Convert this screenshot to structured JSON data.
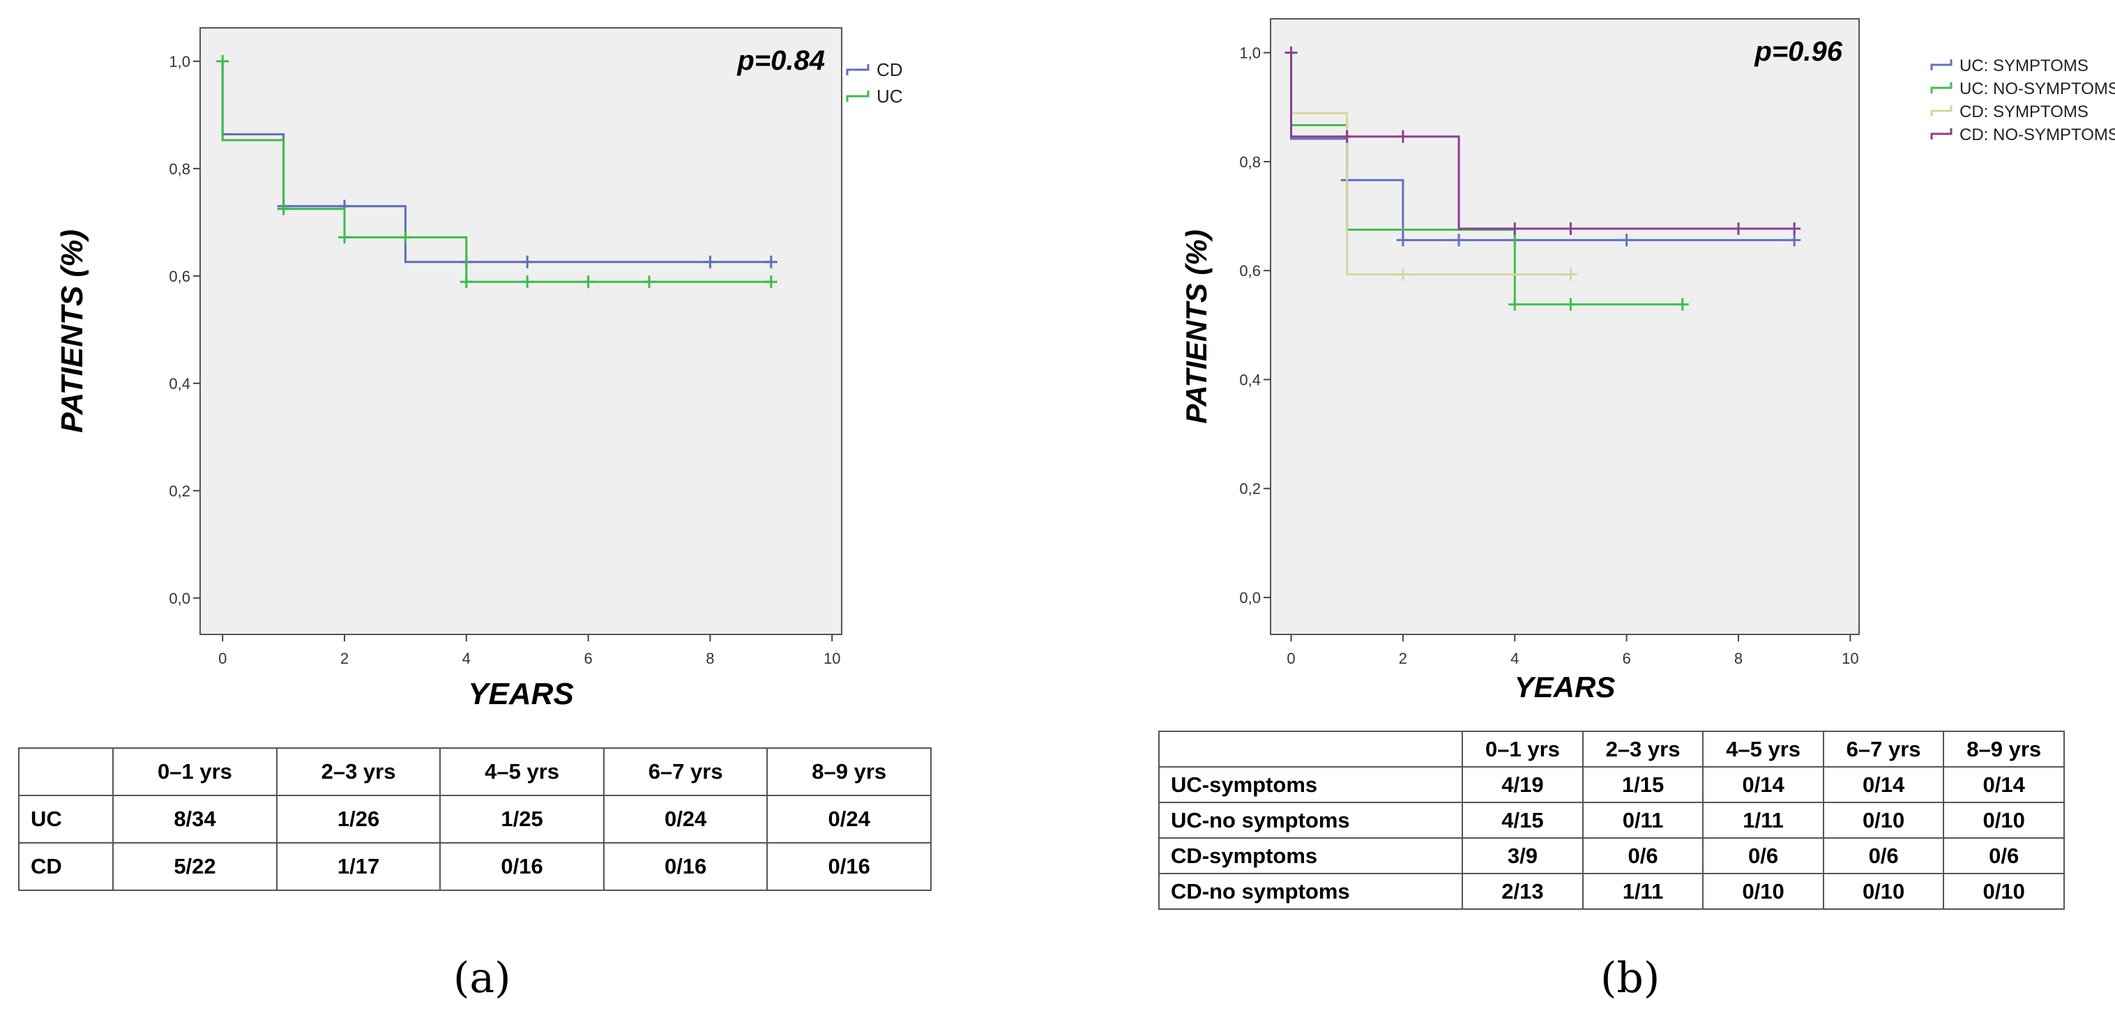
{
  "chart_data": [
    {
      "type": "line",
      "panel_label": "(a)",
      "ylabel": "PATIENTS (%)",
      "xlabel": "YEARS",
      "annotation": "p=0.84",
      "xlim": [
        0,
        10
      ],
      "ylim": [
        0,
        1
      ],
      "x_ticks": [
        0,
        2,
        4,
        6,
        8,
        10
      ],
      "y_ticks": [
        0,
        0.2,
        0.4,
        0.6,
        0.8,
        1.0
      ],
      "y_tick_labels": [
        "0,0",
        "0,2",
        "0,4",
        "0,6",
        "0,8",
        "1,0"
      ],
      "legend_position": "right",
      "series": [
        {
          "name": "CD",
          "color": "#5b6fb8",
          "steps": [
            [
              0,
              1.0
            ],
            [
              0,
              0.864
            ],
            [
              1,
              0.864
            ],
            [
              1,
              0.73
            ],
            [
              3,
              0.73
            ],
            [
              3,
              0.626
            ],
            [
              9,
              0.626
            ]
          ],
          "censors": [
            [
              1,
              0.73
            ],
            [
              2,
              0.73
            ],
            [
              4,
              0.626
            ],
            [
              5,
              0.626
            ],
            [
              8,
              0.626
            ],
            [
              9,
              0.626
            ]
          ]
        },
        {
          "name": "UC",
          "color": "#3dbb4c",
          "steps": [
            [
              0,
              1.0
            ],
            [
              0,
              0.853
            ],
            [
              1,
              0.853
            ],
            [
              1,
              0.725
            ],
            [
              2,
              0.725
            ],
            [
              2,
              0.672
            ],
            [
              4,
              0.672
            ],
            [
              4,
              0.589
            ],
            [
              9,
              0.589
            ]
          ],
          "censors": [
            [
              0,
              1.0
            ],
            [
              1,
              0.725
            ],
            [
              2,
              0.672
            ],
            [
              3,
              0.672
            ],
            [
              4,
              0.589
            ],
            [
              5,
              0.589
            ],
            [
              6,
              0.589
            ],
            [
              7,
              0.589
            ],
            [
              9,
              0.589
            ]
          ]
        }
      ]
    },
    {
      "type": "line",
      "panel_label": "(b)",
      "ylabel": "PATIENTS (%)",
      "xlabel": "YEARS",
      "annotation": "p=0.96",
      "xlim": [
        0,
        10
      ],
      "ylim": [
        0,
        1
      ],
      "x_ticks": [
        0,
        2,
        4,
        6,
        8,
        10
      ],
      "y_ticks": [
        0,
        0.2,
        0.4,
        0.6,
        0.8,
        1.0
      ],
      "y_tick_labels": [
        "0,0",
        "0,2",
        "0,4",
        "0,6",
        "0,8",
        "1,0"
      ],
      "legend_position": "top-right",
      "series": [
        {
          "name": "UC: SYMPTOMS",
          "color": "#6272c0",
          "steps": [
            [
              0,
              1.0
            ],
            [
              0,
              0.842
            ],
            [
              1,
              0.842
            ],
            [
              1,
              0.766
            ],
            [
              2,
              0.766
            ],
            [
              2,
              0.656
            ],
            [
              9,
              0.656
            ]
          ],
          "censors": [
            [
              1,
              0.766
            ],
            [
              2,
              0.656
            ],
            [
              3,
              0.656
            ],
            [
              4,
              0.656
            ],
            [
              6,
              0.656
            ],
            [
              9,
              0.656
            ]
          ]
        },
        {
          "name": "UC: NO-SYMPTOMS",
          "color": "#3fc04e",
          "steps": [
            [
              0,
              1.0
            ],
            [
              0,
              0.867
            ],
            [
              1,
              0.867
            ],
            [
              1,
              0.675
            ],
            [
              4,
              0.675
            ],
            [
              4,
              0.538
            ],
            [
              7,
              0.538
            ]
          ],
          "censors": [
            [
              4,
              0.538
            ],
            [
              5,
              0.538
            ],
            [
              7,
              0.538
            ]
          ]
        },
        {
          "name": "CD: SYMPTOMS",
          "color": "#d9d4a0",
          "steps": [
            [
              0,
              1.0
            ],
            [
              0,
              0.889
            ],
            [
              1,
              0.889
            ],
            [
              1,
              0.593
            ],
            [
              5,
              0.593
            ]
          ],
          "censors": [
            [
              2,
              0.593
            ],
            [
              5,
              0.593
            ]
          ]
        },
        {
          "name": "CD: NO-SYMPTOMS",
          "color": "#8a3f8e",
          "steps": [
            [
              0,
              1.0
            ],
            [
              0,
              0.846
            ],
            [
              3,
              0.846
            ],
            [
              3,
              0.677
            ],
            [
              9,
              0.677
            ]
          ],
          "censors": [
            [
              0,
              1.0
            ],
            [
              1,
              0.846
            ],
            [
              2,
              0.846
            ],
            [
              4,
              0.677
            ],
            [
              5,
              0.677
            ],
            [
              8,
              0.677
            ],
            [
              9,
              0.677
            ]
          ]
        }
      ]
    }
  ],
  "tables": [
    {
      "headers": [
        "",
        "0–1 yrs",
        "2–3 yrs",
        "4–5 yrs",
        "6–7 yrs",
        "8–9 yrs"
      ],
      "rows": [
        [
          "UC",
          "8/34",
          "1/26",
          "1/25",
          "0/24",
          "0/24"
        ],
        [
          "CD",
          "5/22",
          "1/17",
          "0/16",
          "0/16",
          "0/16"
        ]
      ]
    },
    {
      "headers": [
        "",
        "0–1 yrs",
        "2–3 yrs",
        "4–5 yrs",
        "6–7 yrs",
        "8–9 yrs"
      ],
      "rows": [
        [
          "UC-symptoms",
          "4/19",
          "1/15",
          "0/14",
          "0/14",
          "0/14"
        ],
        [
          "UC-no symptoms",
          "4/15",
          "0/11",
          "1/11",
          "0/10",
          "0/10"
        ],
        [
          "CD-symptoms",
          "3/9",
          "0/6",
          "0/6",
          "0/6",
          "0/6"
        ],
        [
          "CD-no symptoms",
          "2/13",
          "1/11",
          "0/10",
          "0/10",
          "0/10"
        ]
      ]
    }
  ]
}
